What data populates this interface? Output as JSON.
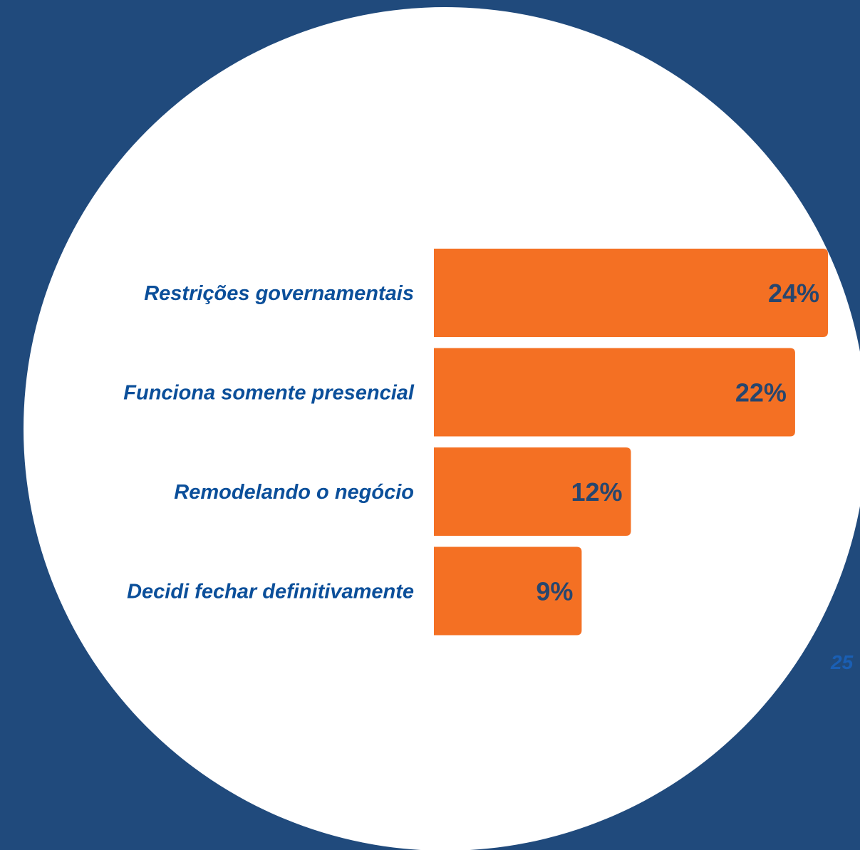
{
  "page_number": "25",
  "colors": {
    "background": "#204a7c",
    "circle": "#ffffff",
    "bar": "#f47023",
    "category_text": "#0b4f9a",
    "value_text": "#27466e"
  },
  "chart_data": {
    "type": "bar",
    "orientation": "horizontal",
    "categories": [
      "Restrições governamentais",
      "Funciona somente presencial",
      "Remodelando o negócio",
      "Decidi fechar definitivamente"
    ],
    "values": [
      24,
      22,
      12,
      9
    ],
    "value_labels": [
      "24%",
      "22%",
      "12%",
      "9%"
    ],
    "unit": "%",
    "grid": false,
    "legend": false
  }
}
